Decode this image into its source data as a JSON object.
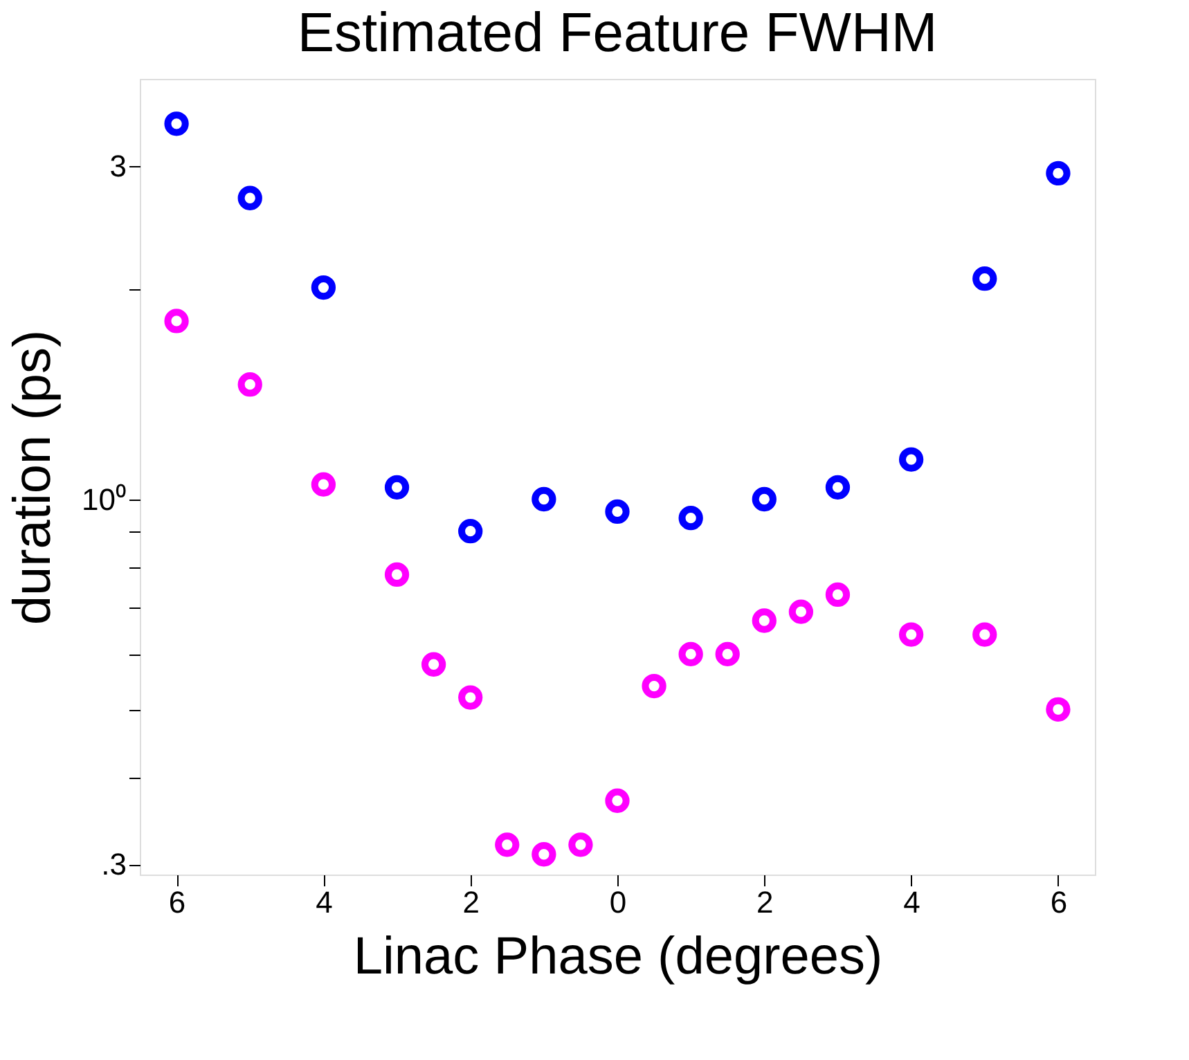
{
  "chart_data": {
    "type": "scatter",
    "title": "Estimated Feature FWHM",
    "xlabel": "Linac Phase (degrees)",
    "ylabel": "duration (ps)",
    "log": "y",
    "grid": false,
    "marker": "circle",
    "xlim": [
      -6.5,
      6.5
    ],
    "xticks": [
      {
        "value": -6,
        "label": "6"
      },
      {
        "value": -4,
        "label": "4"
      },
      {
        "value": -2,
        "label": "2"
      },
      0,
      2,
      4,
      6
    ],
    "ylim": [
      0.29,
      4.0
    ],
    "yticks": [
      {
        "value": 0.3,
        "label": ".3"
      },
      {
        "value": 0.4,
        "label": null
      },
      {
        "value": 0.5,
        "label": null
      },
      {
        "value": 0.6,
        "label": null
      },
      {
        "value": 0.7,
        "label": null
      },
      {
        "value": 0.8,
        "label": null
      },
      {
        "value": 0.9,
        "label": null
      },
      {
        "value": 1,
        "label": "10⁰"
      },
      {
        "value": 2,
        "label": null
      },
      3
    ],
    "series": [
      {
        "color": "#0000ff",
        "x": [
          -6,
          -5,
          -4,
          -3,
          -2,
          -1,
          0,
          1,
          2,
          3,
          4,
          5,
          6
        ],
        "values": [
          3.45,
          2.7,
          2.01,
          1.04,
          0.9,
          1.0,
          0.96,
          0.94,
          1.0,
          1.04,
          1.14,
          2.07,
          2.93
        ]
      },
      {
        "color": "#ff00ff",
        "x": [
          -6,
          -5,
          -4,
          -3,
          -2.5,
          -2,
          -1.5,
          -1,
          -0.5,
          0,
          0.5,
          1,
          1.5,
          2,
          2.5,
          3,
          4,
          5,
          6
        ],
        "values": [
          1.8,
          1.46,
          1.05,
          0.78,
          0.58,
          0.52,
          0.32,
          0.31,
          0.32,
          0.37,
          0.54,
          0.6,
          0.6,
          0.67,
          0.69,
          0.73,
          0.64,
          0.64,
          0.5
        ]
      }
    ]
  }
}
